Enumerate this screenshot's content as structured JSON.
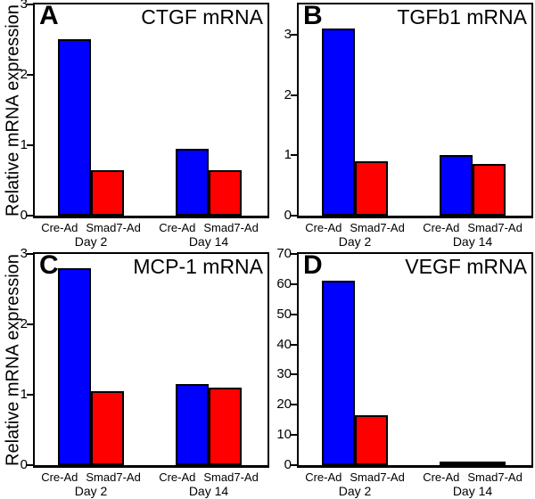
{
  "figure": {
    "background": "#ffffff",
    "outline_color": "#000000",
    "bar_colors": {
      "Cre-Ad": "#0000ff",
      "Smad7-Ad": "#ff0000"
    }
  },
  "chart_data": [
    {
      "type": "bar",
      "panel": "A",
      "title": "CTGF mRNA",
      "ylabel": "Relative mRNA expression",
      "ylim": [
        0,
        3
      ],
      "yticks": [
        0,
        1,
        2,
        3
      ],
      "groups": [
        "Day 2",
        "Day 14"
      ],
      "series": [
        {
          "name": "Cre-Ad",
          "color": "#0000ff",
          "values": [
            2.5,
            0.95
          ]
        },
        {
          "name": "Smad7-Ad",
          "color": "#ff0000",
          "values": [
            0.65,
            0.65
          ]
        }
      ]
    },
    {
      "type": "bar",
      "panel": "B",
      "title": "TGFb1 mRNA",
      "ylim": [
        0,
        3.5
      ],
      "yticks": [
        0,
        1,
        2,
        3
      ],
      "groups": [
        "Day 2",
        "Day 14"
      ],
      "series": [
        {
          "name": "Cre-Ad",
          "color": "#0000ff",
          "values": [
            3.1,
            1.0
          ]
        },
        {
          "name": "Smad7-Ad",
          "color": "#ff0000",
          "values": [
            0.9,
            0.85
          ]
        }
      ]
    },
    {
      "type": "bar",
      "panel": "C",
      "title": "MCP-1 mRNA",
      "ylabel": "Relative mRNA expression",
      "ylim": [
        0,
        3
      ],
      "yticks": [
        0,
        1,
        2,
        3
      ],
      "groups": [
        "Day 2",
        "Day 14"
      ],
      "series": [
        {
          "name": "Cre-Ad",
          "color": "#0000ff",
          "values": [
            2.8,
            1.15
          ]
        },
        {
          "name": "Smad7-Ad",
          "color": "#ff0000",
          "values": [
            1.05,
            1.1
          ]
        }
      ]
    },
    {
      "type": "bar",
      "panel": "D",
      "title": "VEGF mRNA",
      "ylim": [
        0,
        70
      ],
      "yticks": [
        0,
        10,
        20,
        30,
        40,
        50,
        60,
        70
      ],
      "groups": [
        "Day 2",
        "Day 14"
      ],
      "series": [
        {
          "name": "Cre-Ad",
          "color": "#0000ff",
          "values": [
            61,
            0.8
          ]
        },
        {
          "name": "Smad7-Ad",
          "color": "#ff0000",
          "values": [
            16.5,
            0.8
          ]
        }
      ]
    }
  ]
}
